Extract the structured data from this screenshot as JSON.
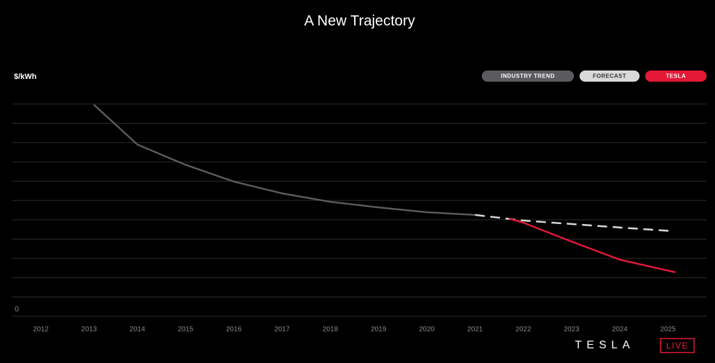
{
  "chart_data": {
    "type": "line",
    "title": "A New Trajectory",
    "y_label": "$/kWh",
    "xlim": [
      2011.4,
      2025.8
    ],
    "xticks": [
      2012,
      2013,
      2014,
      2015,
      2016,
      2017,
      2018,
      2019,
      2020,
      2021,
      2022,
      2023,
      2024,
      2025
    ],
    "ylim": [
      0,
      11
    ],
    "yticks": [
      0,
      {
        "value": 1,
        "label": null
      },
      {
        "value": 2,
        "label": null
      },
      {
        "value": 3,
        "label": null
      },
      {
        "value": 4,
        "label": null
      },
      {
        "value": 5,
        "label": null
      },
      {
        "value": 6,
        "label": null
      },
      {
        "value": 7,
        "label": null
      },
      {
        "value": 8,
        "label": null
      },
      {
        "value": 9,
        "label": null
      },
      {
        "value": 10,
        "label": null
      },
      {
        "value": 11,
        "label": null
      }
    ],
    "grid": true,
    "legend_position": "top-right",
    "series": [
      {
        "name": "INDUSTRY TREND",
        "color": "#5a5a5f",
        "dashed": false,
        "x": [
          2013.1,
          2014,
          2015,
          2016,
          2017,
          2018,
          2019,
          2020,
          2021
        ],
        "values": [
          10.96,
          8.9,
          7.85,
          6.98,
          6.37,
          5.93,
          5.64,
          5.39,
          5.25
        ]
      },
      {
        "name": "FORECAST",
        "color": "#d9d9d9",
        "dashed": true,
        "x": [
          2021,
          2022,
          2023,
          2024,
          2025.1
        ],
        "values": [
          5.25,
          4.96,
          4.78,
          4.6,
          4.41
        ]
      },
      {
        "name": "TESLA",
        "color": "#e31937",
        "dashed": false,
        "x": [
          2021.7,
          2022,
          2023,
          2024,
          2025.15
        ],
        "values": [
          5.07,
          4.85,
          3.87,
          2.93,
          2.28
        ]
      }
    ],
    "footer_brand": "TESLA",
    "footer_tag": "LIVE"
  }
}
